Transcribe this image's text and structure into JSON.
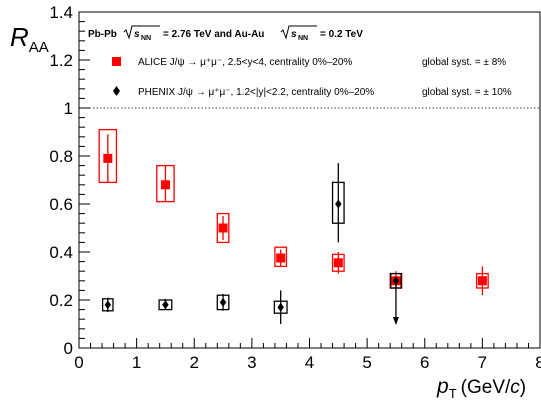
{
  "chart_data": {
    "type": "scatter",
    "header": {
      "part1": "Pb-Pb",
      "sqrt1": "s",
      "sqrt1_sub": "NN",
      "part2": "= 2.76 TeV and Au-Au",
      "sqrt2": "s",
      "sqrt2_sub": "NN",
      "part3": "= 0.2 TeV"
    },
    "ylabel": {
      "main": "R",
      "sub": "AA"
    },
    "xlabel": {
      "main": "p",
      "sub": "T",
      "rest": "(GeV/",
      "c": "c",
      "close": ")"
    },
    "xlim": [
      0,
      8
    ],
    "ylim": [
      0,
      1.4
    ],
    "x_ticks": [
      "0",
      "1",
      "2",
      "3",
      "4",
      "5",
      "6",
      "7",
      "8"
    ],
    "y_ticks": [
      "0",
      "0.2",
      "0.4",
      "0.6",
      "0.8",
      "1",
      "1.2",
      "1.4"
    ],
    "reference_line": 1,
    "series": [
      {
        "name": "ALICE J/ψ → μ⁺μ⁻, 2.5<y<4, centrality 0%–20%",
        "legend": {
          "text": "ALICE J/ψ → μ⁺μ⁻, 2.5<y<4, centrality 0%–20%",
          "syst": "global syst. = ± 8%"
        },
        "color": "#ff0000",
        "marker": "square",
        "points": [
          {
            "x": 0.5,
            "y": 0.79,
            "stat_lo": 0.69,
            "stat_hi": 0.89,
            "sys_lo": 0.69,
            "sys_hi": 0.91,
            "bw": 0.15
          },
          {
            "x": 1.5,
            "y": 0.68,
            "stat_lo": 0.61,
            "stat_hi": 0.76,
            "sys_lo": 0.61,
            "sys_hi": 0.76,
            "bw": 0.15
          },
          {
            "x": 2.5,
            "y": 0.5,
            "stat_lo": 0.45,
            "stat_hi": 0.55,
            "sys_lo": 0.44,
            "sys_hi": 0.56,
            "bw": 0.1
          },
          {
            "x": 3.5,
            "y": 0.375,
            "stat_lo": 0.34,
            "stat_hi": 0.41,
            "sys_lo": 0.34,
            "sys_hi": 0.42,
            "bw": 0.1
          },
          {
            "x": 4.5,
            "y": 0.355,
            "stat_lo": 0.31,
            "stat_hi": 0.4,
            "sys_lo": 0.32,
            "sys_hi": 0.39,
            "bw": 0.1
          },
          {
            "x": 5.5,
            "y": 0.28,
            "stat_lo": 0.24,
            "stat_hi": 0.32,
            "sys_lo": 0.25,
            "sys_hi": 0.31,
            "bw": 0.1
          },
          {
            "x": 7.0,
            "y": 0.28,
            "stat_lo": 0.22,
            "stat_hi": 0.34,
            "sys_lo": 0.25,
            "sys_hi": 0.31,
            "bw": 0.1
          }
        ]
      },
      {
        "name": "PHENIX J/ψ → μ⁺μ⁻, 1.2<|y|<2.2, centrality 0%–20%",
        "legend": {
          "text": "PHENIX J/ψ → μ⁺μ⁻, 1.2<|y|<2.2, centrality 0%–20%",
          "syst": "global syst. = ± 10%"
        },
        "color": "#000000",
        "marker": "diamond",
        "points": [
          {
            "x": 0.5,
            "y": 0.18,
            "stat_lo": 0.15,
            "stat_hi": 0.21,
            "sys_lo": 0.155,
            "sys_hi": 0.205,
            "bw": 0.09
          },
          {
            "x": 1.5,
            "y": 0.18,
            "stat_lo": 0.16,
            "stat_hi": 0.205,
            "sys_lo": 0.16,
            "sys_hi": 0.2,
            "bw": 0.11
          },
          {
            "x": 2.5,
            "y": 0.19,
            "stat_lo": 0.155,
            "stat_hi": 0.225,
            "sys_lo": 0.16,
            "sys_hi": 0.22,
            "bw": 0.1
          },
          {
            "x": 3.5,
            "y": 0.17,
            "stat_lo": 0.1,
            "stat_hi": 0.24,
            "sys_lo": 0.145,
            "sys_hi": 0.195,
            "bw": 0.11
          },
          {
            "x": 4.5,
            "y": 0.6,
            "stat_lo": 0.44,
            "stat_hi": 0.77,
            "sys_lo": 0.52,
            "sys_hi": 0.69,
            "bw": 0.1
          },
          {
            "x": 5.5,
            "y": 0.28,
            "upper_limit": true,
            "arrow_to": 0.1,
            "sys_lo": 0.25,
            "sys_hi": 0.31,
            "bw": 0.09
          }
        ]
      }
    ]
  }
}
